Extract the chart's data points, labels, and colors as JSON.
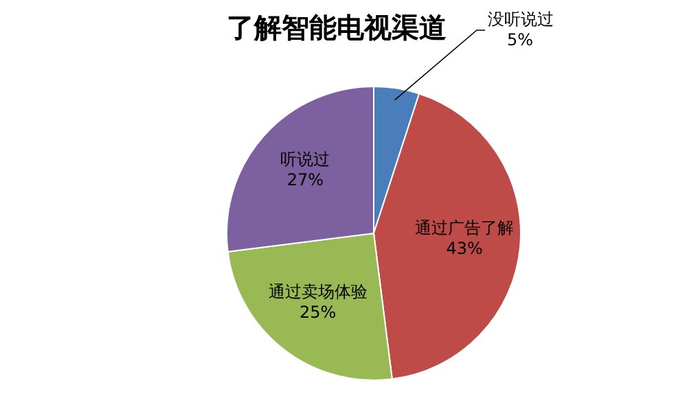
{
  "chart_data": {
    "type": "pie",
    "title": "了解智能电视渠道",
    "categories": [
      "没听说过",
      "通过广告了解",
      "通过卖场体验",
      "听说过"
    ],
    "values": [
      5,
      43,
      25,
      27
    ],
    "colors": [
      "#4a7ebb",
      "#be4b48",
      "#98b954",
      "#7d60a0"
    ],
    "value_labels": [
      "5%",
      "43%",
      "25%",
      "27%"
    ]
  }
}
